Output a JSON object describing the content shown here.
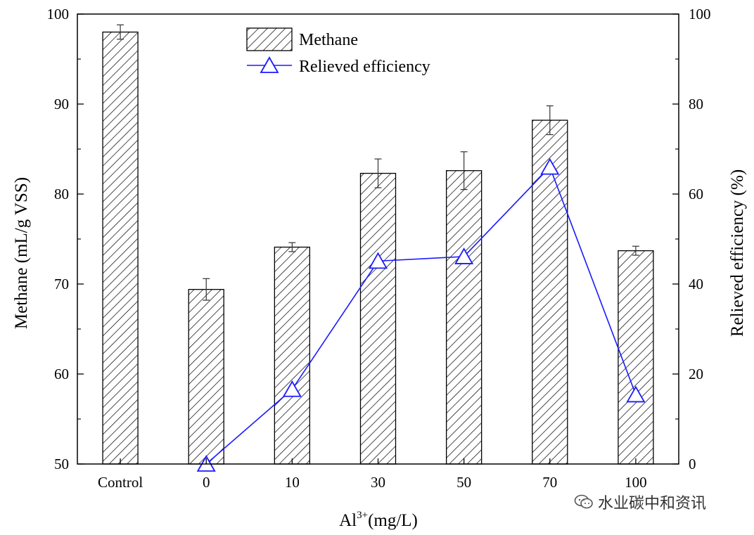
{
  "chart_data": {
    "type": "bar",
    "categories": [
      "Control",
      "0",
      "10",
      "30",
      "50",
      "70",
      "100"
    ],
    "series": [
      {
        "name": "Methane",
        "kind": "bar",
        "axis": "left",
        "values": [
          98.0,
          69.4,
          74.1,
          82.3,
          82.6,
          88.2,
          73.7
        ],
        "errors": [
          0.8,
          1.2,
          0.5,
          1.6,
          2.1,
          1.6,
          0.5
        ],
        "pattern": "diagonal-hatch"
      },
      {
        "name": "Relieved efficiency",
        "kind": "line",
        "axis": "right",
        "marker": "triangle-open",
        "color": "#1a1aff",
        "values": [
          null,
          0,
          16.6,
          45.1,
          46.1,
          66.0,
          15.4
        ]
      }
    ],
    "xlabel_base": "Al",
    "xlabel_sup": "3+",
    "xlabel_rest": "(mg/L)",
    "ylabel": "Methane (mL/g VSS)",
    "y2label": "Relieved efficiency (%)",
    "ylim": [
      50,
      100
    ],
    "y2lim": [
      0,
      100
    ],
    "yticks": [
      "50",
      "60",
      "70",
      "80",
      "90",
      "100"
    ],
    "y2ticks": [
      "0",
      "20",
      "40",
      "60",
      "80",
      "100"
    ],
    "legend_position": "top-center",
    "grid": false
  },
  "watermark": {
    "text": "水业碳中和资讯",
    "icon": "wechat-icon"
  }
}
